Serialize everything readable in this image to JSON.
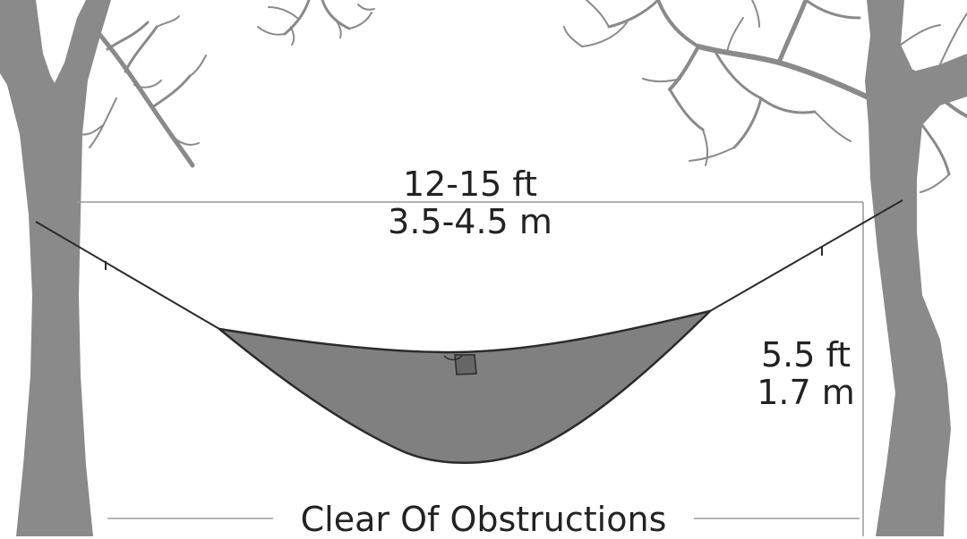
{
  "span_label": {
    "line1": "12-15 ft",
    "line2": "3.5-4.5 m"
  },
  "height_label": {
    "line1": "5.5 ft",
    "line2": "1.7 m"
  },
  "clearance_label": "Clear Of Obstructions",
  "colors": {
    "tree": "#8a8a8a",
    "hammock": "#808080",
    "outline": "#2b2b2b",
    "measure_line": "#9a9a9a",
    "text": "#222222"
  }
}
